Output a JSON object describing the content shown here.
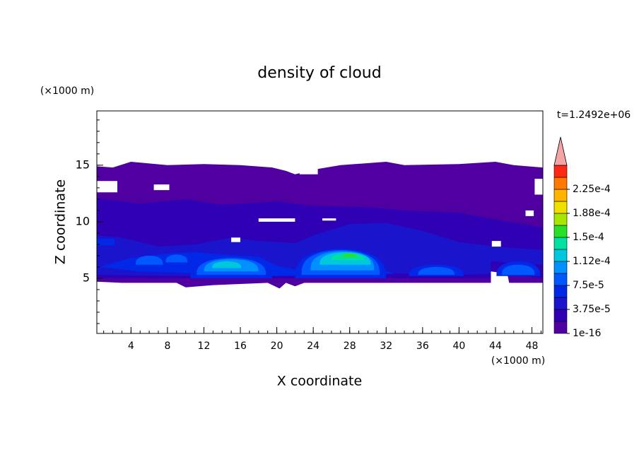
{
  "chart_data": {
    "type": "contour",
    "title": "density of cloud",
    "x_label": "X coordinate",
    "y_label": "Z coordinate",
    "x_unit": "(×1000 m)",
    "y_unit": "(×1000 m)",
    "annotation": "t=1.2492e+06",
    "xlim": [
      0.25,
      49.2
    ],
    "ylim": [
      0.125,
      19.8
    ],
    "xticks": [
      4,
      8,
      12,
      16,
      20,
      24,
      28,
      32,
      36,
      40,
      44,
      48
    ],
    "yticks": [
      5,
      10,
      15
    ],
    "colorbar": {
      "ticks": [
        {
          "value": 1e-16,
          "label": "1e-16"
        },
        {
          "value": 3.75e-05,
          "label": "3.75e-5"
        },
        {
          "value": 7.5e-05,
          "label": "7.5e-5"
        },
        {
          "value": 0.000112,
          "label": "1.12e-4"
        },
        {
          "value": 0.00015,
          "label": "1.5e-4"
        },
        {
          "value": 0.000188,
          "label": "1.88e-4"
        },
        {
          "value": 0.000225,
          "label": "2.25e-4"
        }
      ],
      "colors": [
        "#5000a0",
        "#3000b4",
        "#1a14cc",
        "#0028e6",
        "#0058ff",
        "#0090ff",
        "#00c8dc",
        "#00e0a0",
        "#28e028",
        "#a8e600",
        "#f0e000",
        "#ffb400",
        "#ff7800",
        "#ff2814"
      ],
      "extend_color": "#f4a4a4"
    }
  }
}
